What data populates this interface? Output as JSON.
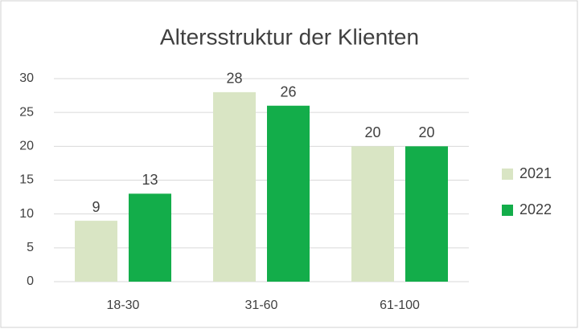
{
  "chart_data": {
    "type": "bar",
    "title": "Altersstruktur der Klienten",
    "categories": [
      "18-30",
      "31-60",
      "61-100"
    ],
    "series": [
      {
        "name": "2021",
        "color": "#d9e5c4",
        "values": [
          9,
          28,
          20
        ]
      },
      {
        "name": "2022",
        "color": "#13ad4a",
        "values": [
          13,
          26,
          20
        ]
      }
    ],
    "ylim": [
      0,
      30
    ],
    "yticks": [
      0,
      5,
      10,
      15,
      20,
      25,
      30
    ],
    "grid": true,
    "legend": "right",
    "data_labels": true
  }
}
